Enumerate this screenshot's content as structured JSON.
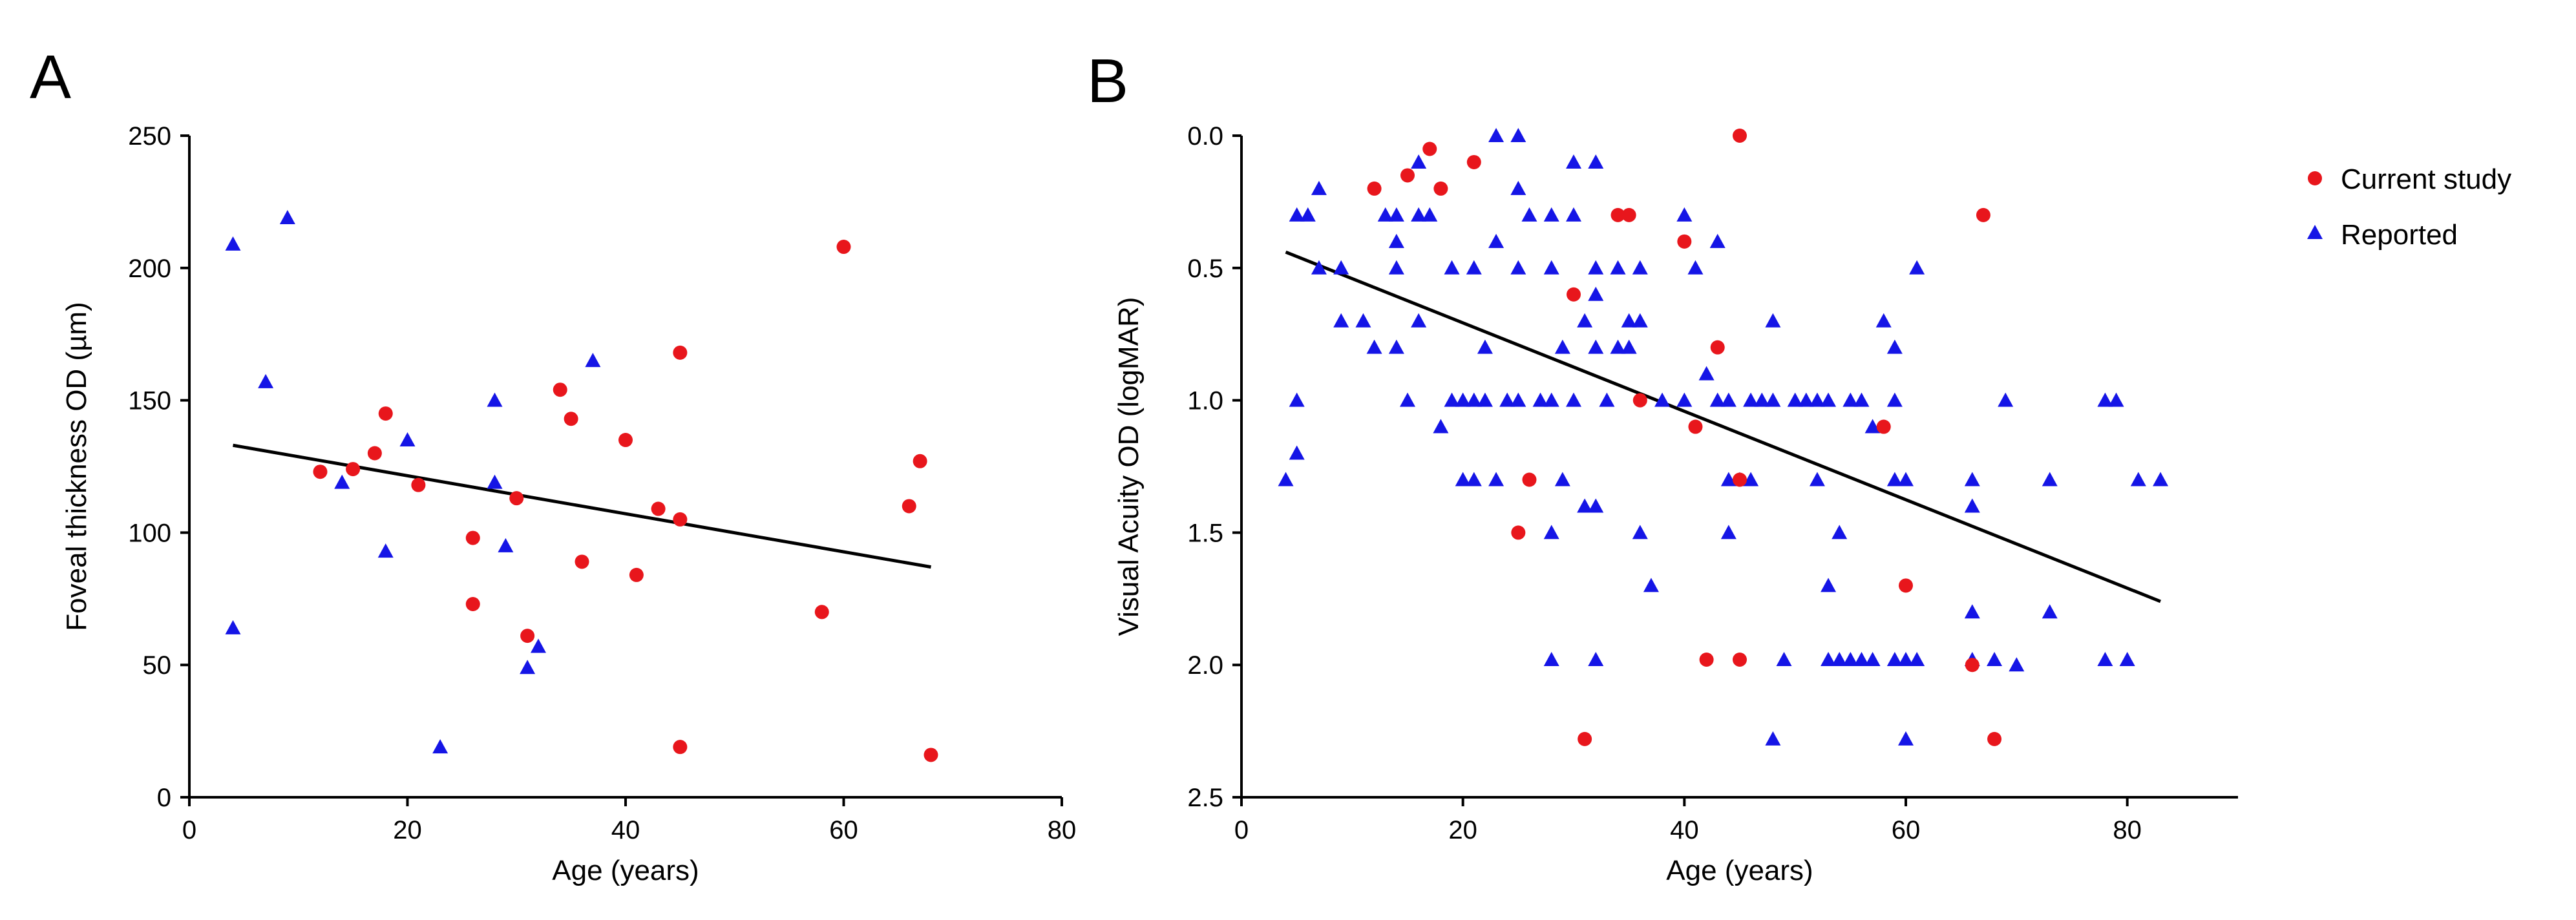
{
  "chart_data": [
    {
      "panel": "A",
      "type": "scatter",
      "xlabel": "Age (years)",
      "ylabel": "Foveal thickness OD (µm)",
      "xlim": [
        0,
        80
      ],
      "ylim": [
        0,
        250
      ],
      "y_inverted": false,
      "xticks": [
        0,
        20,
        40,
        60,
        80
      ],
      "yticks": [
        0,
        50,
        100,
        150,
        200,
        250
      ],
      "series": [
        {
          "name": "Current study",
          "marker": "circle",
          "color": "#e8161c",
          "points": [
            [
              12,
              123
            ],
            [
              15,
              124
            ],
            [
              17,
              130
            ],
            [
              18,
              145
            ],
            [
              21,
              118
            ],
            [
              26,
              98
            ],
            [
              26,
              73
            ],
            [
              30,
              113
            ],
            [
              31,
              61
            ],
            [
              34,
              154
            ],
            [
              35,
              143
            ],
            [
              36,
              89
            ],
            [
              40,
              135
            ],
            [
              41,
              84
            ],
            [
              43,
              109
            ],
            [
              45,
              105
            ],
            [
              45,
              168
            ],
            [
              45,
              19
            ],
            [
              58,
              70
            ],
            [
              60,
              208
            ],
            [
              66,
              110
            ],
            [
              67,
              127
            ],
            [
              68,
              16
            ]
          ]
        },
        {
          "name": "Reported",
          "marker": "triangle",
          "color": "#1515e6",
          "points": [
            [
              4,
              209
            ],
            [
              4,
              64
            ],
            [
              7,
              157
            ],
            [
              9,
              219
            ],
            [
              14,
              119
            ],
            [
              18,
              93
            ],
            [
              20,
              135
            ],
            [
              23,
              19
            ],
            [
              28,
              150
            ],
            [
              28,
              119
            ],
            [
              29,
              95
            ],
            [
              31,
              49
            ],
            [
              32,
              57
            ],
            [
              37,
              165
            ]
          ]
        }
      ],
      "regression_line": [
        [
          4,
          133
        ],
        [
          68,
          87
        ]
      ]
    },
    {
      "panel": "B",
      "type": "scatter",
      "xlabel": "Age (years)",
      "ylabel": "Visual Acuity OD (logMAR)",
      "xlim": [
        0,
        90
      ],
      "ylim": [
        0.0,
        2.5
      ],
      "y_inverted": true,
      "xticks": [
        0,
        20,
        40,
        60,
        80
      ],
      "yticks": [
        "0.0",
        "0.5",
        "1.0",
        "1.5",
        "2.0",
        "2.5"
      ],
      "legend_position": "right",
      "series": [
        {
          "name": "Current study",
          "marker": "circle",
          "color": "#e8161c",
          "points": [
            [
              12,
              0.2
            ],
            [
              15,
              0.15
            ],
            [
              17,
              0.05
            ],
            [
              18,
              0.2
            ],
            [
              21,
              0.1
            ],
            [
              25,
              1.5
            ],
            [
              26,
              1.3
            ],
            [
              30,
              0.6
            ],
            [
              31,
              2.28
            ],
            [
              34,
              0.3
            ],
            [
              35,
              0.3
            ],
            [
              36,
              1.0
            ],
            [
              40,
              0.4
            ],
            [
              41,
              1.1
            ],
            [
              42,
              1.98
            ],
            [
              43,
              0.8
            ],
            [
              45,
              0.0
            ],
            [
              45,
              1.3
            ],
            [
              45,
              1.98
            ],
            [
              58,
              1.1
            ],
            [
              60,
              1.7
            ],
            [
              66,
              2.0
            ],
            [
              67,
              0.3
            ],
            [
              68,
              2.28
            ]
          ]
        },
        {
          "name": "Reported",
          "marker": "triangle",
          "color": "#1515e6",
          "points": [
            [
              4,
              1.3
            ],
            [
              5,
              1.2
            ],
            [
              5,
              1.0
            ],
            [
              5,
              0.3
            ],
            [
              6,
              0.3
            ],
            [
              7,
              0.2
            ],
            [
              7,
              0.5
            ],
            [
              9,
              0.5
            ],
            [
              9,
              0.7
            ],
            [
              11,
              0.7
            ],
            [
              12,
              0.8
            ],
            [
              13,
              0.3
            ],
            [
              14,
              0.3
            ],
            [
              14,
              0.4
            ],
            [
              14,
              0.5
            ],
            [
              14,
              0.8
            ],
            [
              15,
              1.0
            ],
            [
              16,
              0.3
            ],
            [
              16,
              0.1
            ],
            [
              16,
              0.7
            ],
            [
              17,
              0.3
            ],
            [
              18,
              1.1
            ],
            [
              19,
              0.5
            ],
            [
              19,
              1.0
            ],
            [
              20,
              1.0
            ],
            [
              20,
              1.3
            ],
            [
              21,
              1.3
            ],
            [
              21,
              0.5
            ],
            [
              21,
              1.0
            ],
            [
              22,
              0.8
            ],
            [
              22,
              1.0
            ],
            [
              23,
              0.0
            ],
            [
              23,
              1.3
            ],
            [
              23,
              0.4
            ],
            [
              24,
              1.0
            ],
            [
              25,
              0.0
            ],
            [
              25,
              0.2
            ],
            [
              25,
              0.5
            ],
            [
              25,
              1.0
            ],
            [
              26,
              0.3
            ],
            [
              27,
              1.0
            ],
            [
              28,
              1.0
            ],
            [
              28,
              0.3
            ],
            [
              28,
              0.5
            ],
            [
              28,
              1.5
            ],
            [
              28,
              1.98
            ],
            [
              29,
              0.8
            ],
            [
              29,
              1.3
            ],
            [
              30,
              0.1
            ],
            [
              30,
              0.3
            ],
            [
              30,
              1.0
            ],
            [
              31,
              1.4
            ],
            [
              31,
              0.7
            ],
            [
              32,
              1.98
            ],
            [
              32,
              0.8
            ],
            [
              32,
              0.6
            ],
            [
              32,
              0.5
            ],
            [
              32,
              0.1
            ],
            [
              32,
              1.4
            ],
            [
              33,
              1.0
            ],
            [
              34,
              0.5
            ],
            [
              34,
              0.8
            ],
            [
              35,
              0.8
            ],
            [
              35,
              0.7
            ],
            [
              36,
              0.7
            ],
            [
              36,
              0.5
            ],
            [
              36,
              1.5
            ],
            [
              37,
              1.7
            ],
            [
              38,
              1.0
            ],
            [
              40,
              0.3
            ],
            [
              40,
              1.0
            ],
            [
              41,
              0.5
            ],
            [
              42,
              0.9
            ],
            [
              43,
              0.4
            ],
            [
              43,
              1.0
            ],
            [
              44,
              1.3
            ],
            [
              44,
              1.5
            ],
            [
              44,
              1.0
            ],
            [
              45,
              1.3
            ],
            [
              46,
              1.3
            ],
            [
              46,
              1.0
            ],
            [
              47,
              1.0
            ],
            [
              48,
              1.0
            ],
            [
              48,
              2.28
            ],
            [
              48,
              0.7
            ],
            [
              49,
              1.98
            ],
            [
              50,
              1.0
            ],
            [
              51,
              1.0
            ],
            [
              52,
              1.0
            ],
            [
              52,
              1.3
            ],
            [
              53,
              1.98
            ],
            [
              53,
              1.7
            ],
            [
              53,
              1.0
            ],
            [
              54,
              1.98
            ],
            [
              54,
              1.5
            ],
            [
              55,
              1.98
            ],
            [
              55,
              1.0
            ],
            [
              56,
              1.0
            ],
            [
              56,
              1.98
            ],
            [
              57,
              1.98
            ],
            [
              57,
              1.1
            ],
            [
              58,
              0.7
            ],
            [
              59,
              0.8
            ],
            [
              59,
              1.3
            ],
            [
              59,
              1.98
            ],
            [
              59,
              1.0
            ],
            [
              60,
              1.3
            ],
            [
              60,
              2.28
            ],
            [
              60,
              1.98
            ],
            [
              61,
              1.98
            ],
            [
              61,
              0.5
            ],
            [
              66,
              1.3
            ],
            [
              66,
              1.4
            ],
            [
              66,
              1.8
            ],
            [
              66,
              1.98
            ],
            [
              68,
              1.98
            ],
            [
              69,
              1.0
            ],
            [
              70,
              2.0
            ],
            [
              73,
              1.3
            ],
            [
              73,
              1.8
            ],
            [
              78,
              1.0
            ],
            [
              78,
              1.98
            ],
            [
              79,
              1.0
            ],
            [
              80,
              1.98
            ],
            [
              81,
              1.3
            ],
            [
              83,
              1.3
            ]
          ]
        }
      ],
      "regression_line": [
        [
          4,
          0.44
        ],
        [
          83,
          1.76
        ]
      ]
    }
  ],
  "panels": {
    "a": {
      "letter": "A"
    },
    "b": {
      "letter": "B"
    }
  },
  "legend": {
    "items": [
      {
        "label": "Current study",
        "marker": "circle",
        "color": "#e8161c"
      },
      {
        "label": "Reported",
        "marker": "triangle",
        "color": "#1515e6"
      }
    ]
  }
}
